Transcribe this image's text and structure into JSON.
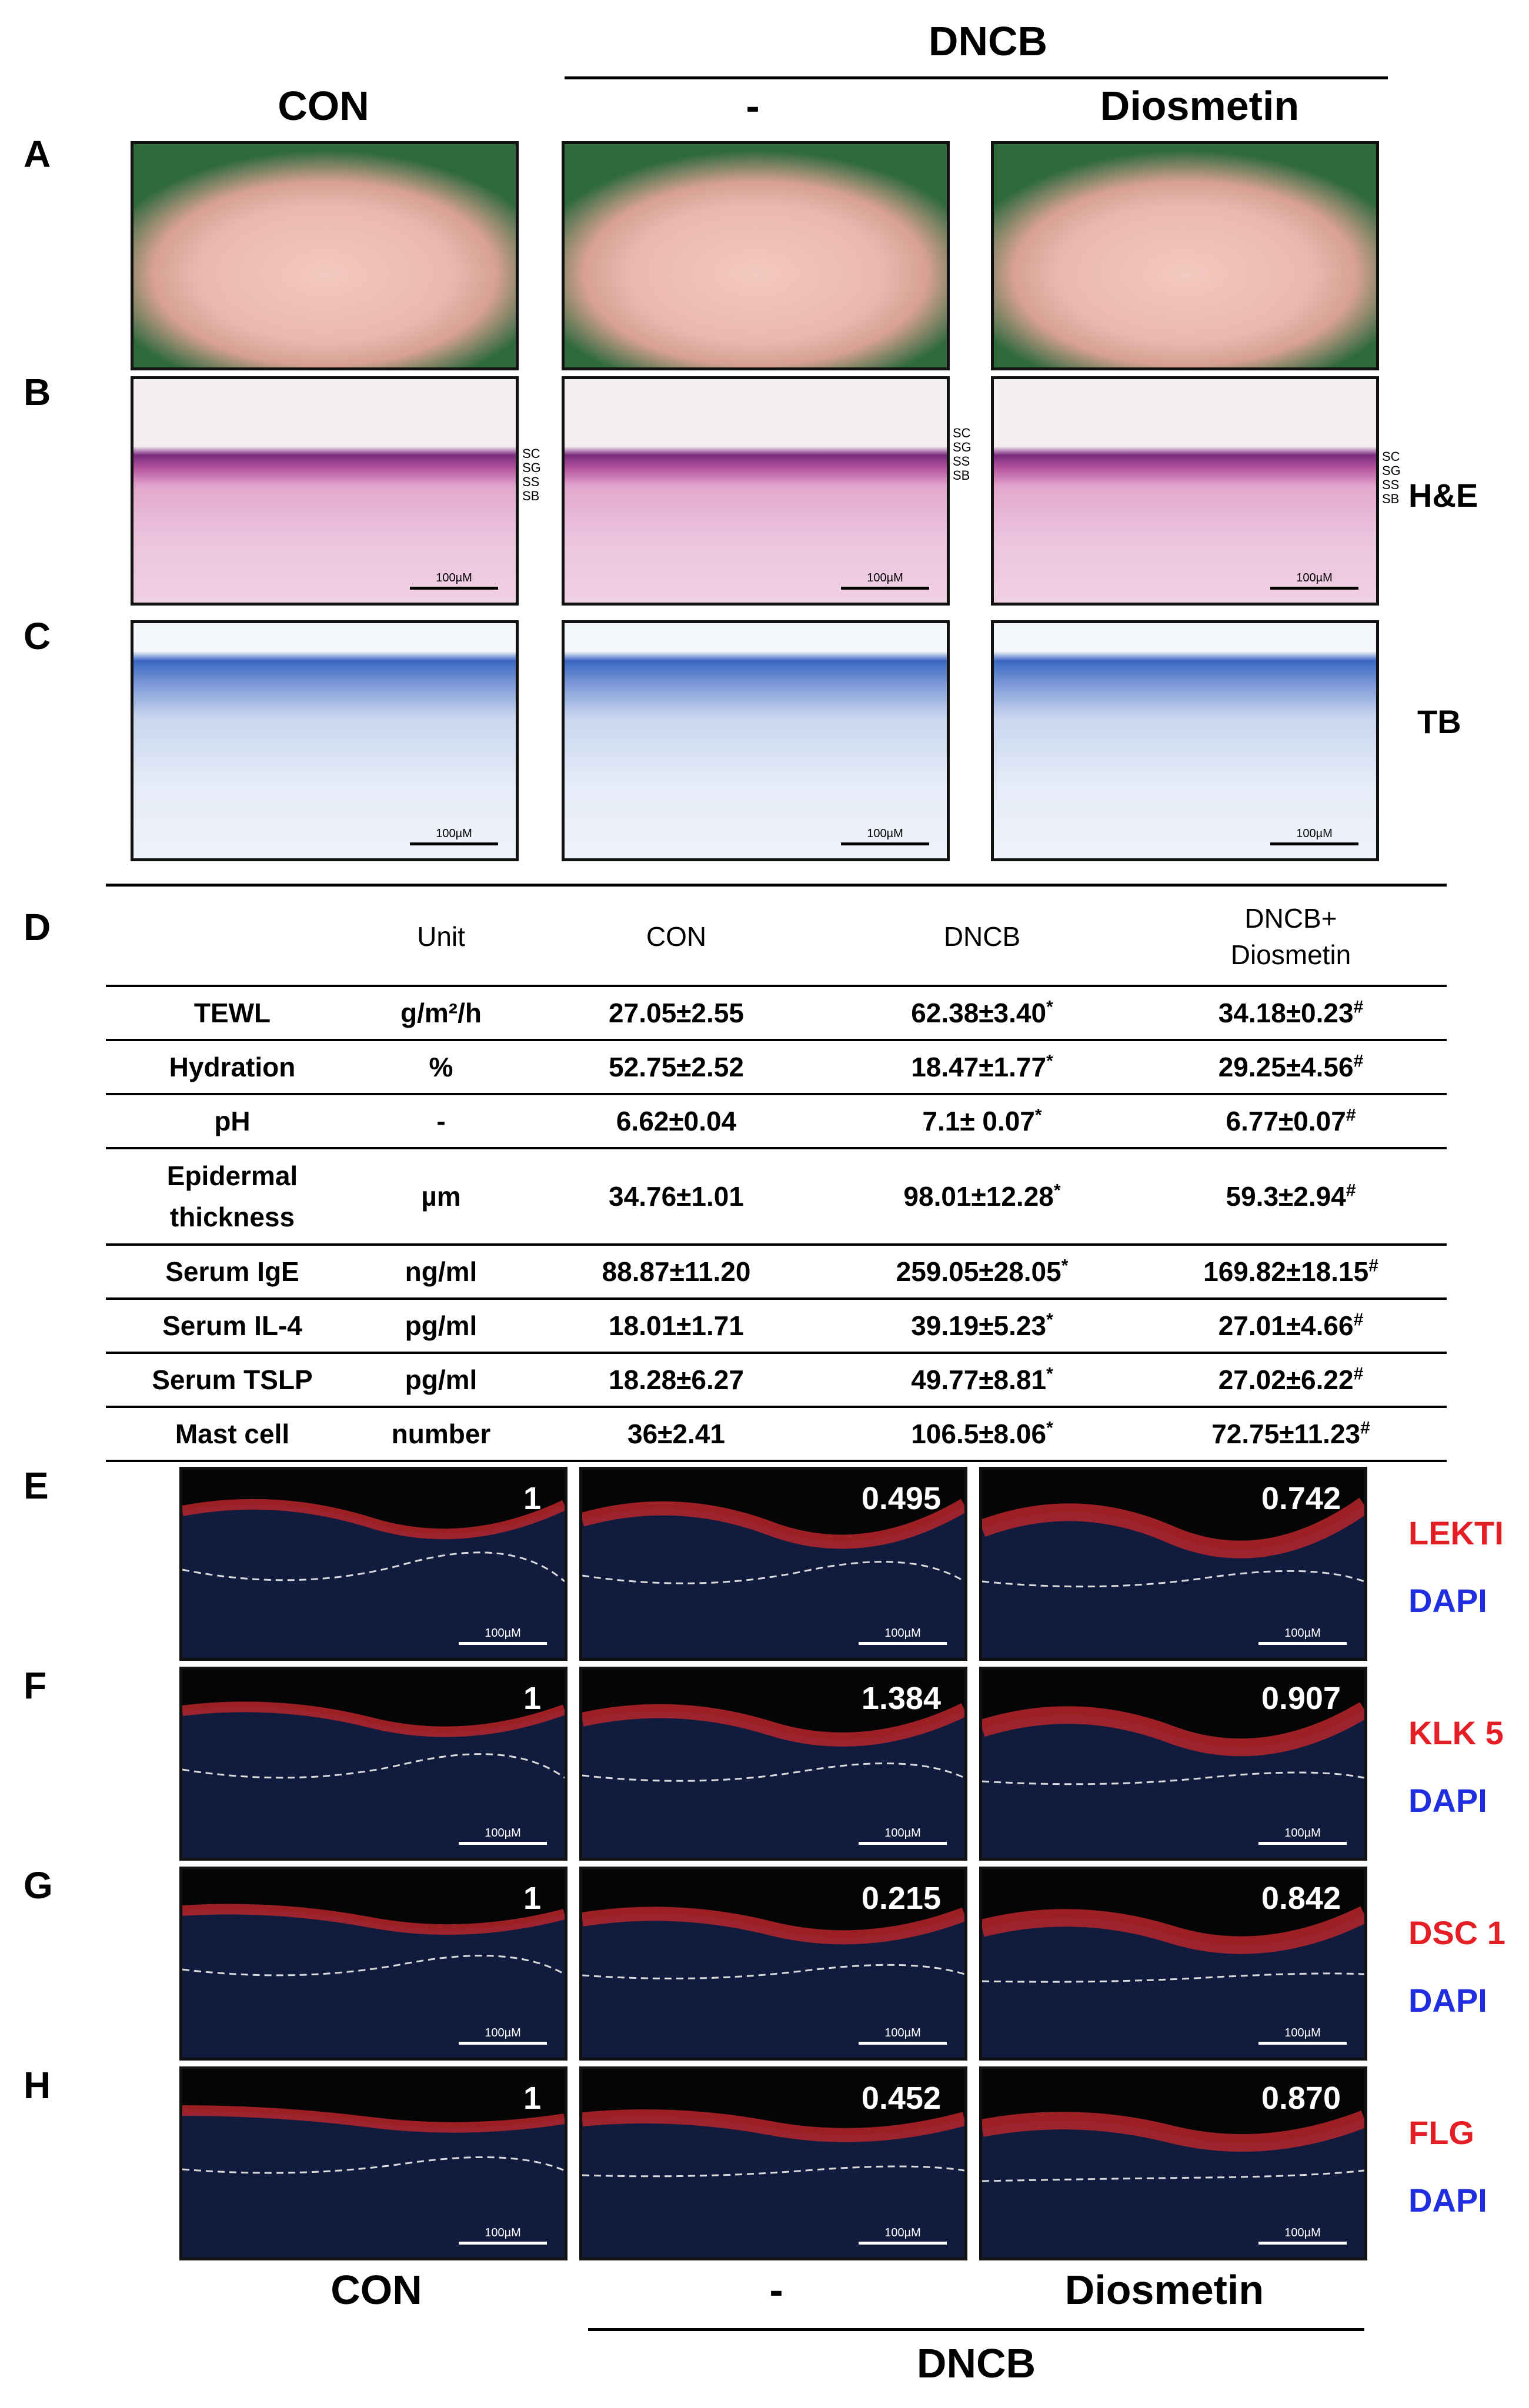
{
  "headers_top": {
    "group": "DNCB",
    "con": "CON",
    "dash": "-",
    "diosmetin": "Diosmetin"
  },
  "panel_letters": {
    "a": "A",
    "b": "B",
    "c": "C",
    "d": "D",
    "e": "E",
    "f": "F",
    "g": "G",
    "h": "H"
  },
  "stain_labels": {
    "he": "H&E",
    "tb": "TB"
  },
  "layer_labels": [
    "SC",
    "SG",
    "SS",
    "SB"
  ],
  "scale_bar": "100µM",
  "table": {
    "columns": [
      "",
      "Unit",
      "CON",
      "DNCB",
      "DNCB+\nDiosmetin"
    ],
    "rows": [
      {
        "label": "TEWL",
        "unit": "g/m²/h",
        "con": "27.05±2.55",
        "dncb": "62.38±3.40",
        "dio": "34.18±0.23"
      },
      {
        "label": "Hydration",
        "unit": "%",
        "con": "52.75±2.52",
        "dncb": "18.47±1.77",
        "dio": "29.25±4.56"
      },
      {
        "label": "pH",
        "unit": "-",
        "con": "6.62±0.04",
        "dncb": "7.1± 0.07",
        "dio": "6.77±0.07"
      },
      {
        "label": "Epidermal\nthickness",
        "unit": "µm",
        "con": "34.76±1.01",
        "dncb": "98.01±12.28",
        "dio": "59.3±2.94"
      },
      {
        "label": "Serum IgE",
        "unit": "ng/ml",
        "con": "88.87±11.20",
        "dncb": "259.05±28.05",
        "dio": "169.82±18.15"
      },
      {
        "label": "Serum IL-4",
        "unit": "pg/ml",
        "con": "18.01±1.71",
        "dncb": "39.19±5.23",
        "dio": "27.01±4.66"
      },
      {
        "label": "Serum TSLP",
        "unit": "pg/ml",
        "con": "18.28±6.27",
        "dncb": "49.77±8.81",
        "dio": "27.02±6.22"
      },
      {
        "label": "Mast cell",
        "unit": "number",
        "con": "36±2.41",
        "dncb": "106.5±8.06",
        "dio": "72.75±11.23"
      }
    ],
    "dncb_mark": "*",
    "dio_mark": "#"
  },
  "if_rows": [
    {
      "marker": "LEKTI",
      "dapi": "DAPI",
      "ratios": [
        "1",
        "0.495",
        "0.742"
      ]
    },
    {
      "marker": "KLK 5",
      "dapi": "DAPI",
      "ratios": [
        "1",
        "1.384",
        "0.907"
      ]
    },
    {
      "marker": "DSC 1",
      "dapi": "DAPI",
      "ratios": [
        "1",
        "0.215",
        "0.842"
      ]
    },
    {
      "marker": "FLG",
      "dapi": "DAPI",
      "ratios": [
        "1",
        "0.452",
        "0.870"
      ]
    }
  ],
  "headers_bottom": {
    "con": "CON",
    "dash": "-",
    "diosmetin": "Diosmetin",
    "group": "DNCB"
  },
  "colors": {
    "marker": "#e51e25",
    "dapi": "#1e2ee0"
  }
}
